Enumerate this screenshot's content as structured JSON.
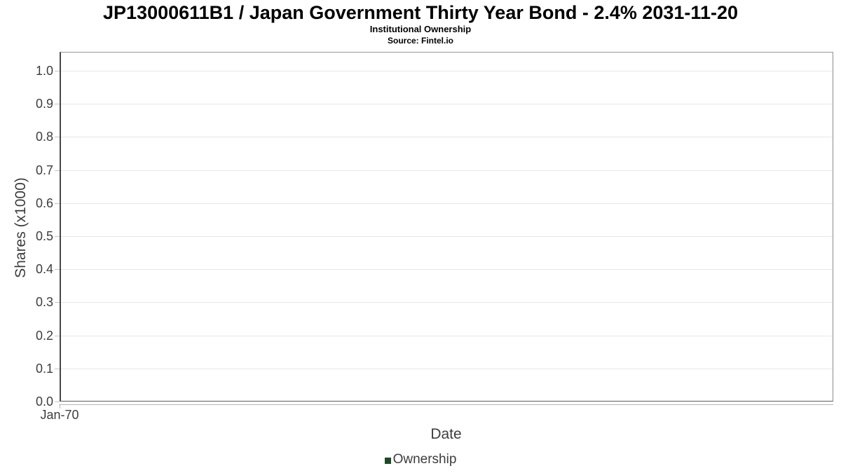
{
  "chart": {
    "title": "JP13000611B1 / Japan Government Thirty Year Bond - 2.4% 2031-11-20",
    "subtitle": "Institutional Ownership",
    "source": "Source: Fintel.io"
  },
  "chart_data": {
    "type": "line",
    "title": "JP13000611B1 / Japan Government Thirty Year Bond - 2.4% 2031-11-20",
    "subtitle": "Institutional Ownership",
    "source": "Source: Fintel.io",
    "xlabel": "Date",
    "ylabel": "Shares (x1000)",
    "ylim": [
      0.0,
      1.055
    ],
    "yticks": [
      0.0,
      0.1,
      0.2,
      0.3,
      0.4,
      0.5,
      0.6,
      0.7,
      0.8,
      0.9,
      1.0
    ],
    "ytick_labels": [
      "0.0",
      "0.1",
      "0.2",
      "0.3",
      "0.4",
      "0.5",
      "0.6",
      "0.7",
      "0.8",
      "0.9",
      "1.0"
    ],
    "xtick_labels": [
      "Jan-70"
    ],
    "grid": true,
    "legend": {
      "position": "bottom-center",
      "entries": [
        {
          "label": "Ownership",
          "color": "#1d4a24"
        }
      ]
    },
    "series": [
      {
        "name": "Ownership",
        "x": [],
        "y": []
      }
    ]
  }
}
